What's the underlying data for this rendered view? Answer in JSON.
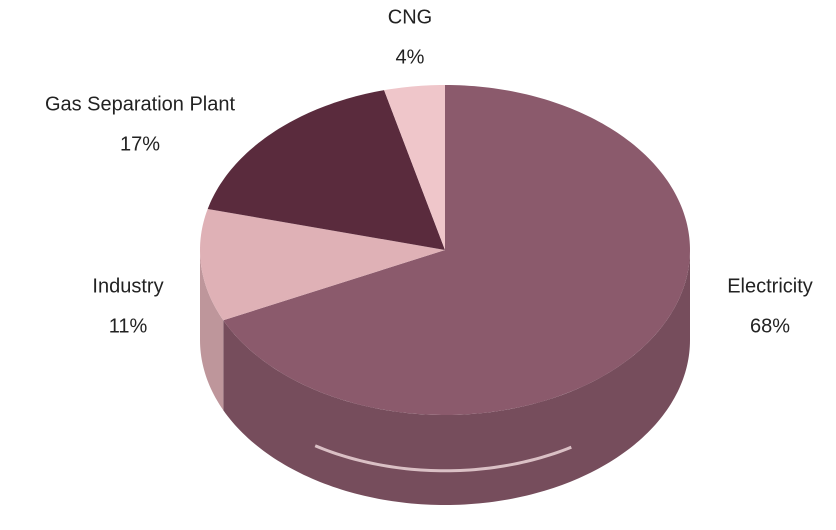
{
  "chart_data": {
    "type": "pie",
    "categories": [
      "Electricity",
      "Industry",
      "Gas Separation Plant",
      "CNG"
    ],
    "values": [
      68,
      11,
      17,
      4
    ],
    "value_labels": [
      "68%",
      "11%",
      "17%",
      "4%"
    ],
    "colors": [
      "#8b5a6c",
      "#dfb1b6",
      "#5a2b3d",
      "#efc6ca"
    ]
  }
}
